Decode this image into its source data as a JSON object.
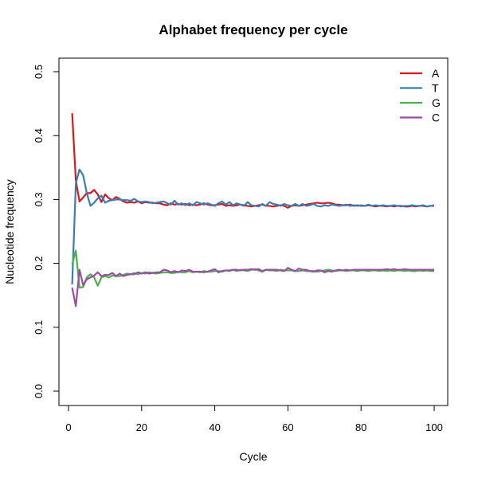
{
  "chart_data": {
    "type": "line",
    "title": "Alphabet frequency per cycle",
    "xlabel": "Cycle",
    "ylabel": "Nucleotide frequency",
    "xlim": [
      0,
      100
    ],
    "ylim": [
      0,
      0.5
    ],
    "x_ticks": [
      0,
      20,
      40,
      60,
      80,
      100
    ],
    "y_ticks": [
      0.0,
      0.1,
      0.2,
      0.3,
      0.4,
      0.5
    ],
    "x_tick_labels": [
      "0",
      "20",
      "40",
      "60",
      "80",
      "100"
    ],
    "y_tick_labels": [
      "0.0",
      "0.1",
      "0.2",
      "0.3",
      "0.4",
      "0.5"
    ],
    "grid": false,
    "legend_position": "top-right",
    "series": [
      {
        "name": "A",
        "color": "#d7191c",
        "values": [
          0.435,
          0.33,
          0.297,
          0.303,
          0.31,
          0.31,
          0.315,
          0.308,
          0.296,
          0.308,
          0.302,
          0.299,
          0.304,
          0.301,
          0.297,
          0.295,
          0.296,
          0.295,
          0.297,
          0.294,
          0.296,
          0.295,
          0.295,
          0.294,
          0.294,
          0.292,
          0.291,
          0.294,
          0.292,
          0.293,
          0.292,
          0.293,
          0.291,
          0.292,
          0.291,
          0.292,
          0.294,
          0.292,
          0.291,
          0.291,
          0.292,
          0.293,
          0.29,
          0.291,
          0.29,
          0.291,
          0.292,
          0.291,
          0.29,
          0.289,
          0.29,
          0.291,
          0.292,
          0.29,
          0.29,
          0.289,
          0.29,
          0.291,
          0.29,
          0.287,
          0.29,
          0.291,
          0.29,
          0.291,
          0.292,
          0.293,
          0.294,
          0.295,
          0.294,
          0.294,
          0.295,
          0.294,
          0.292,
          0.292,
          0.291,
          0.291,
          0.292,
          0.29,
          0.291,
          0.29,
          0.29,
          0.291,
          0.29,
          0.289,
          0.29,
          0.29,
          0.289,
          0.29,
          0.289,
          0.29,
          0.29,
          0.289,
          0.289,
          0.29,
          0.289,
          0.29,
          0.29,
          0.289,
          0.29,
          0.29
        ]
      },
      {
        "name": "T",
        "color": "#377eb8",
        "values": [
          0.167,
          0.325,
          0.347,
          0.338,
          0.31,
          0.29,
          0.295,
          0.302,
          0.306,
          0.295,
          0.298,
          0.299,
          0.3,
          0.3,
          0.299,
          0.299,
          0.298,
          0.301,
          0.297,
          0.296,
          0.297,
          0.296,
          0.294,
          0.295,
          0.296,
          0.297,
          0.294,
          0.292,
          0.298,
          0.292,
          0.294,
          0.291,
          0.294,
          0.291,
          0.296,
          0.294,
          0.292,
          0.294,
          0.292,
          0.29,
          0.294,
          0.297,
          0.292,
          0.296,
          0.291,
          0.294,
          0.292,
          0.29,
          0.296,
          0.291,
          0.29,
          0.289,
          0.293,
          0.29,
          0.296,
          0.293,
          0.292,
          0.29,
          0.293,
          0.291,
          0.29,
          0.293,
          0.29,
          0.293,
          0.29,
          0.291,
          0.293,
          0.29,
          0.289,
          0.291,
          0.29,
          0.292,
          0.291,
          0.29,
          0.291,
          0.292,
          0.29,
          0.291,
          0.29,
          0.291,
          0.29,
          0.292,
          0.29,
          0.291,
          0.29,
          0.291,
          0.29,
          0.29,
          0.291,
          0.29,
          0.289,
          0.29,
          0.29,
          0.291,
          0.29,
          0.29,
          0.291,
          0.289,
          0.29,
          0.291
        ]
      },
      {
        "name": "G",
        "color": "#4daf4a",
        "values": [
          0.198,
          0.22,
          0.162,
          0.163,
          0.178,
          0.183,
          0.178,
          0.165,
          0.178,
          0.18,
          0.178,
          0.181,
          0.18,
          0.18,
          0.182,
          0.184,
          0.183,
          0.185,
          0.183,
          0.185,
          0.184,
          0.186,
          0.185,
          0.184,
          0.185,
          0.186,
          0.186,
          0.185,
          0.185,
          0.187,
          0.186,
          0.186,
          0.188,
          0.186,
          0.187,
          0.186,
          0.188,
          0.187,
          0.187,
          0.188,
          0.188,
          0.187,
          0.189,
          0.188,
          0.19,
          0.188,
          0.19,
          0.189,
          0.188,
          0.19,
          0.191,
          0.189,
          0.187,
          0.19,
          0.189,
          0.189,
          0.188,
          0.19,
          0.189,
          0.189,
          0.189,
          0.188,
          0.188,
          0.189,
          0.188,
          0.188,
          0.188,
          0.187,
          0.188,
          0.189,
          0.19,
          0.189,
          0.188,
          0.189,
          0.189,
          0.188,
          0.189,
          0.189,
          0.188,
          0.189,
          0.189,
          0.188,
          0.189,
          0.189,
          0.188,
          0.189,
          0.188,
          0.189,
          0.188,
          0.189,
          0.189,
          0.188,
          0.189,
          0.188,
          0.188,
          0.189,
          0.188,
          0.189,
          0.188,
          0.188
        ]
      },
      {
        "name": "C",
        "color": "#984ea3",
        "values": [
          0.162,
          0.133,
          0.19,
          0.166,
          0.175,
          0.178,
          0.181,
          0.186,
          0.18,
          0.182,
          0.182,
          0.185,
          0.18,
          0.184,
          0.18,
          0.182,
          0.183,
          0.183,
          0.186,
          0.184,
          0.186,
          0.184,
          0.185,
          0.186,
          0.186,
          0.19,
          0.189,
          0.186,
          0.188,
          0.186,
          0.189,
          0.188,
          0.19,
          0.187,
          0.187,
          0.187,
          0.186,
          0.187,
          0.189,
          0.191,
          0.186,
          0.188,
          0.189,
          0.189,
          0.19,
          0.19,
          0.189,
          0.19,
          0.19,
          0.191,
          0.19,
          0.191,
          0.188,
          0.19,
          0.19,
          0.19,
          0.19,
          0.189,
          0.188,
          0.193,
          0.19,
          0.188,
          0.192,
          0.19,
          0.19,
          0.188,
          0.187,
          0.189,
          0.189,
          0.186,
          0.188,
          0.187,
          0.189,
          0.19,
          0.189,
          0.19,
          0.189,
          0.19,
          0.19,
          0.19,
          0.19,
          0.19,
          0.19,
          0.19,
          0.19,
          0.19,
          0.191,
          0.19,
          0.191,
          0.19,
          0.19,
          0.191,
          0.19,
          0.19,
          0.19,
          0.19,
          0.19,
          0.19,
          0.19,
          0.19
        ]
      }
    ]
  }
}
